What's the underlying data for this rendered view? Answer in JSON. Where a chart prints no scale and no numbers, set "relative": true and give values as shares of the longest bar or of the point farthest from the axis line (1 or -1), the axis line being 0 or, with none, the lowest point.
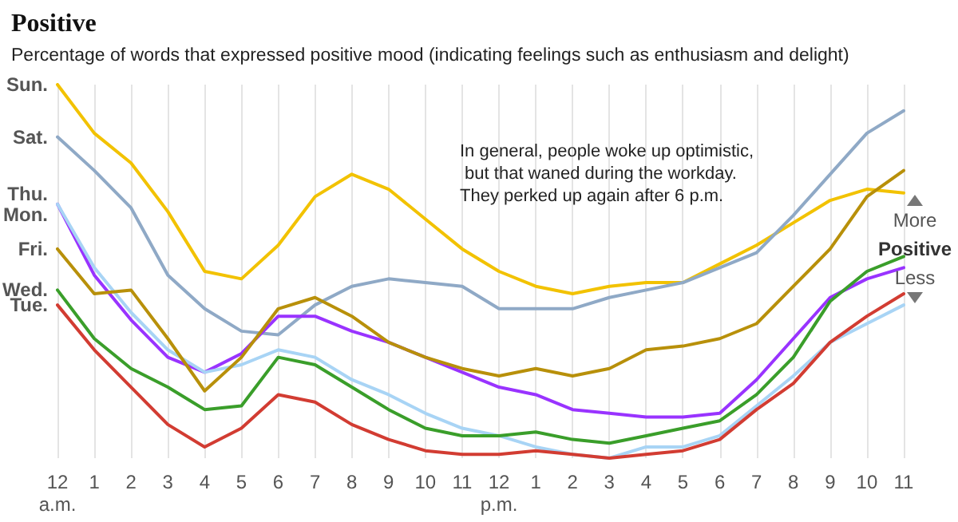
{
  "chart_data": {
    "type": "line",
    "title": "Positive",
    "subtitle": "Percentage of words that expressed positive mood (indicating feelings such as enthusiasm and delight)",
    "annotations": [
      "In general, people woke up optimistic, but that waned during the workday. They perked up again after 6 p.m.",
      "More",
      "Positive",
      "Less"
    ],
    "categories": [
      "12\na.m.",
      "1",
      "2",
      "3",
      "4",
      "5",
      "6",
      "7",
      "8",
      "9",
      "10",
      "11",
      "12\np.m.",
      "1",
      "2",
      "3",
      "4",
      "5",
      "6",
      "7",
      "8",
      "9",
      "10",
      "11"
    ],
    "relative": true,
    "grid": "x",
    "legend": false,
    "line_style": "solid",
    "series": [
      {
        "name": "Sun.",
        "color": "#f2c200",
        "values": [
          1.0,
          0.87,
          0.79,
          0.66,
          0.5,
          0.48,
          0.57,
          0.7,
          0.76,
          0.72,
          0.64,
          0.56,
          0.5,
          0.46,
          0.44,
          0.46,
          0.47,
          0.47,
          0.52,
          0.57,
          0.63,
          0.69,
          0.72,
          0.71
        ]
      },
      {
        "name": "Sat.",
        "color": "#8fa9c6",
        "values": [
          0.86,
          0.77,
          0.67,
          0.49,
          0.4,
          0.34,
          0.33,
          0.41,
          0.46,
          0.48,
          0.47,
          0.46,
          0.4,
          0.4,
          0.4,
          0.43,
          0.45,
          0.47,
          0.51,
          0.55,
          0.65,
          0.76,
          0.87,
          0.93
        ]
      },
      {
        "name": "Thu.",
        "color": "#9933ff",
        "values": [
          0.68,
          0.49,
          0.37,
          0.27,
          0.23,
          0.28,
          0.38,
          0.38,
          0.34,
          0.31,
          0.27,
          0.23,
          0.19,
          0.17,
          0.13,
          0.12,
          0.11,
          0.11,
          0.12,
          0.21,
          0.32,
          0.43,
          0.48,
          0.51
        ]
      },
      {
        "name": "Mon.",
        "color": "#a8d4f5",
        "values": [
          0.68,
          0.51,
          0.39,
          0.29,
          0.23,
          0.25,
          0.29,
          0.27,
          0.21,
          0.17,
          0.12,
          0.08,
          0.06,
          0.03,
          0.01,
          0.0,
          0.03,
          0.03,
          0.06,
          0.14,
          0.22,
          0.31,
          0.36,
          0.41
        ]
      },
      {
        "name": "Fri.",
        "color": "#b8900a",
        "values": [
          0.56,
          0.44,
          0.45,
          0.32,
          0.18,
          0.27,
          0.4,
          0.43,
          0.38,
          0.31,
          0.27,
          0.24,
          0.22,
          0.24,
          0.22,
          0.24,
          0.29,
          0.3,
          0.32,
          0.36,
          0.46,
          0.56,
          0.7,
          0.77
        ]
      },
      {
        "name": "Wed.",
        "color": "#3a9e2a",
        "values": [
          0.45,
          0.32,
          0.24,
          0.19,
          0.13,
          0.14,
          0.27,
          0.25,
          0.19,
          0.13,
          0.08,
          0.06,
          0.06,
          0.07,
          0.05,
          0.04,
          0.06,
          0.08,
          0.1,
          0.17,
          0.27,
          0.42,
          0.5,
          0.54
        ]
      },
      {
        "name": "Tue.",
        "color": "#d23c32",
        "values": [
          0.41,
          0.29,
          0.19,
          0.09,
          0.03,
          0.08,
          0.17,
          0.15,
          0.09,
          0.05,
          0.02,
          0.01,
          0.01,
          0.02,
          0.01,
          0.0,
          0.01,
          0.02,
          0.05,
          0.13,
          0.2,
          0.31,
          0.38,
          0.44
        ]
      }
    ]
  }
}
